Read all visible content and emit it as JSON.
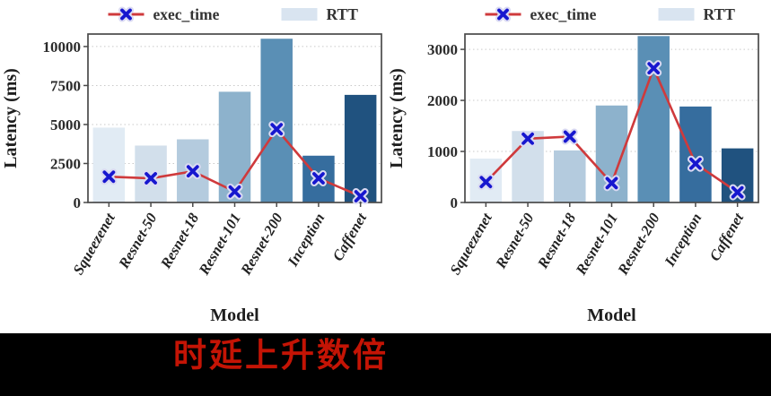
{
  "banner": {
    "text": "时延上升数倍",
    "text_color": "#c41405",
    "background": "#000000"
  },
  "style": {
    "bar_colors": [
      "#e1ebf4",
      "#d2dfeb",
      "#b4cbde",
      "#8db2cc",
      "#5a8fb5",
      "#366d9e",
      "#20527f"
    ],
    "line_color": "#cf3a3c",
    "marker_color": "#1717cf",
    "marker_halo": "#d9d9f2",
    "legend_swatch": "#d9e4f0",
    "axis_color": "#4a4a4a",
    "grid_color": "#c9c9c9",
    "text_color": "#2b2b2b"
  },
  "chart_data": [
    {
      "type": "bar",
      "title": "",
      "categories": [
        "Squeezenet",
        "Resnet-50",
        "Resnet-18",
        "Resnet-101",
        "Resnet-200",
        "Inception",
        "Caffenet"
      ],
      "series": [
        {
          "name": "RTT",
          "type": "bar",
          "values": [
            4800,
            3650,
            4050,
            7100,
            10500,
            3000,
            6900
          ]
        },
        {
          "name": "exec_time",
          "type": "line",
          "marker": "x",
          "values": [
            1650,
            1550,
            2000,
            700,
            4700,
            1550,
            400
          ]
        }
      ],
      "xlabel": "Model",
      "ylabel": "Latency (ms)",
      "ylim": [
        0,
        10800
      ],
      "yticks": [
        0,
        2500,
        5000,
        7500,
        10000
      ],
      "grid": true,
      "legend": [
        "exec_time",
        "RTT"
      ],
      "legend_position": "top"
    },
    {
      "type": "bar",
      "title": "",
      "categories": [
        "Squeezenet",
        "Resnet-50",
        "Resnet-18",
        "Resnet-101",
        "Resnet-200",
        "Inception",
        "Caffenet"
      ],
      "series": [
        {
          "name": "RTT",
          "type": "bar",
          "values": [
            860,
            1400,
            1020,
            1900,
            3260,
            1880,
            1060
          ]
        },
        {
          "name": "exec_time",
          "type": "line",
          "marker": "x",
          "values": [
            400,
            1250,
            1290,
            380,
            2630,
            760,
            200
          ]
        }
      ],
      "xlabel": "Model",
      "ylabel": "Latency (ms)",
      "ylim": [
        0,
        3300
      ],
      "yticks": [
        0,
        1000,
        2000,
        3000
      ],
      "grid": true,
      "legend": [
        "exec_time",
        "RTT"
      ],
      "legend_position": "top"
    }
  ]
}
